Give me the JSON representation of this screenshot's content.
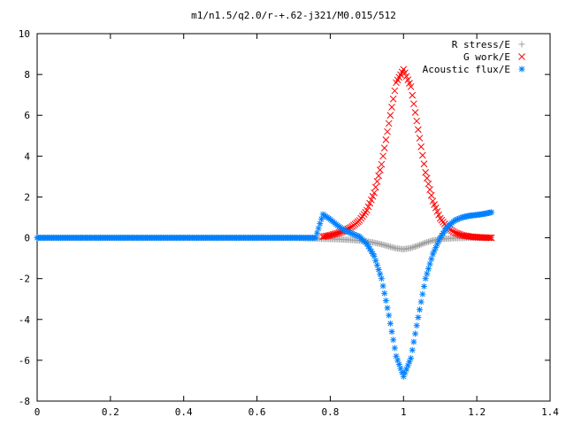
{
  "chart_data": {
    "type": "scatter",
    "title": "m1/n1.5/q2.0/r-+.62-j321/M0.015/512",
    "xlabel": "",
    "ylabel": "",
    "xlim": [
      0,
      1.4
    ],
    "ylim": [
      -8,
      10
    ],
    "x_ticks": [
      {
        "value": 0,
        "label": "0"
      },
      {
        "value": 0.2,
        "label": "0.2"
      },
      {
        "value": 0.4,
        "label": "0.4"
      },
      {
        "value": 0.6,
        "label": "0.6"
      },
      {
        "value": 0.8,
        "label": "0.8"
      },
      {
        "value": 1.0,
        "label": "1"
      },
      {
        "value": 1.2,
        "label": "1.2"
      },
      {
        "value": 1.4,
        "label": "1.4"
      }
    ],
    "y_ticks": [
      {
        "value": -8,
        "label": "-8"
      },
      {
        "value": -6,
        "label": "-6"
      },
      {
        "value": -4,
        "label": "-4"
      },
      {
        "value": -2,
        "label": "-2"
      },
      {
        "value": 0,
        "label": "0"
      },
      {
        "value": 2,
        "label": "2"
      },
      {
        "value": 4,
        "label": "4"
      },
      {
        "value": 6,
        "label": "6"
      },
      {
        "value": 8,
        "label": "8"
      },
      {
        "value": 10,
        "label": "10"
      }
    ],
    "grid": false,
    "legend_position": "top-right",
    "series": [
      {
        "name": "R stress/E",
        "marker": "plus",
        "color": "#a0a0a0",
        "x": [
          0.0,
          0.1,
          0.2,
          0.3,
          0.4,
          0.5,
          0.6,
          0.7,
          0.78,
          0.8,
          0.82,
          0.84,
          0.86,
          0.88,
          0.9,
          0.92,
          0.94,
          0.96,
          0.98,
          1.0,
          1.02,
          1.04,
          1.06,
          1.08,
          1.1,
          1.12,
          1.14,
          1.16,
          1.18,
          1.2,
          1.22,
          1.24
        ],
        "y": [
          0,
          0,
          0,
          0,
          0,
          0,
          0,
          0,
          -0.05,
          -0.06,
          -0.07,
          -0.09,
          -0.11,
          -0.14,
          -0.18,
          -0.24,
          -0.32,
          -0.42,
          -0.52,
          -0.56,
          -0.5,
          -0.38,
          -0.24,
          -0.13,
          -0.07,
          -0.04,
          -0.02,
          -0.01,
          -0.005,
          0,
          0,
          0
        ]
      },
      {
        "name": "G work/E",
        "marker": "cross",
        "color": "#ff0000",
        "x": [
          0.78,
          0.8,
          0.82,
          0.84,
          0.86,
          0.88,
          0.9,
          0.92,
          0.94,
          0.96,
          0.98,
          1.0,
          1.02,
          1.04,
          1.06,
          1.08,
          1.1,
          1.12,
          1.14,
          1.16,
          1.18,
          1.2,
          1.22,
          1.24
        ],
        "y": [
          0.05,
          0.12,
          0.22,
          0.35,
          0.55,
          0.85,
          1.35,
          2.2,
          3.6,
          5.6,
          7.6,
          8.25,
          7.4,
          5.3,
          3.2,
          1.8,
          0.95,
          0.5,
          0.25,
          0.12,
          0.06,
          0.03,
          0.01,
          0
        ]
      },
      {
        "name": "Acoustic flux/E",
        "marker": "star",
        "color": "#0080ff",
        "x": [
          0.0,
          0.1,
          0.2,
          0.3,
          0.4,
          0.5,
          0.6,
          0.7,
          0.76,
          0.78,
          0.8,
          0.82,
          0.84,
          0.86,
          0.88,
          0.9,
          0.92,
          0.94,
          0.96,
          0.98,
          1.0,
          1.02,
          1.04,
          1.06,
          1.08,
          1.1,
          1.12,
          1.14,
          1.16,
          1.18,
          1.2,
          1.22,
          1.24
        ],
        "y": [
          0,
          0,
          0,
          0,
          0,
          0,
          0,
          0,
          0,
          1.15,
          0.9,
          0.6,
          0.35,
          0.2,
          0.05,
          -0.3,
          -0.9,
          -2.0,
          -3.8,
          -5.8,
          -6.8,
          -5.9,
          -3.9,
          -2.0,
          -0.8,
          0.0,
          0.55,
          0.85,
          1.0,
          1.08,
          1.12,
          1.17,
          1.25
        ]
      }
    ]
  }
}
